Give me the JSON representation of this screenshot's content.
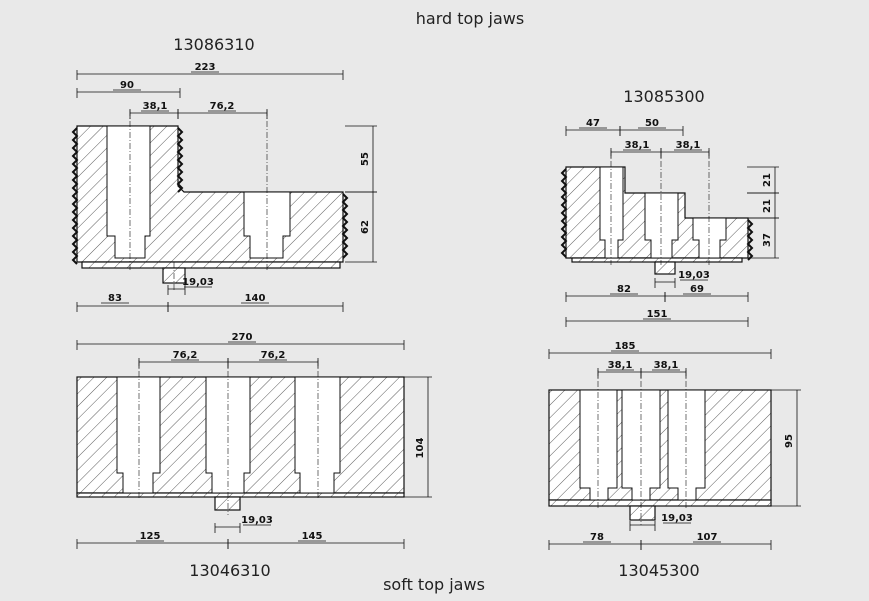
{
  "title": "hard top jaws",
  "footer": "soft top jaws",
  "drawings": [
    {
      "part": "13086310",
      "dims": [
        "223",
        "90",
        "38,1",
        "76,2",
        "55",
        "62",
        "83",
        "19,03",
        "140"
      ]
    },
    {
      "part": "13085300",
      "dims": [
        "47",
        "50",
        "38,1",
        "38,1",
        "21",
        "21",
        "37",
        "19,03",
        "82",
        "69",
        "151"
      ]
    },
    {
      "part": "13046310",
      "dims": [
        "270",
        "76,2",
        "76,2",
        "104",
        "19,03",
        "125",
        "145"
      ]
    },
    {
      "part": "13045300",
      "dims": [
        "185",
        "38,1",
        "38,1",
        "95",
        "19,03",
        "78",
        "107"
      ]
    }
  ]
}
